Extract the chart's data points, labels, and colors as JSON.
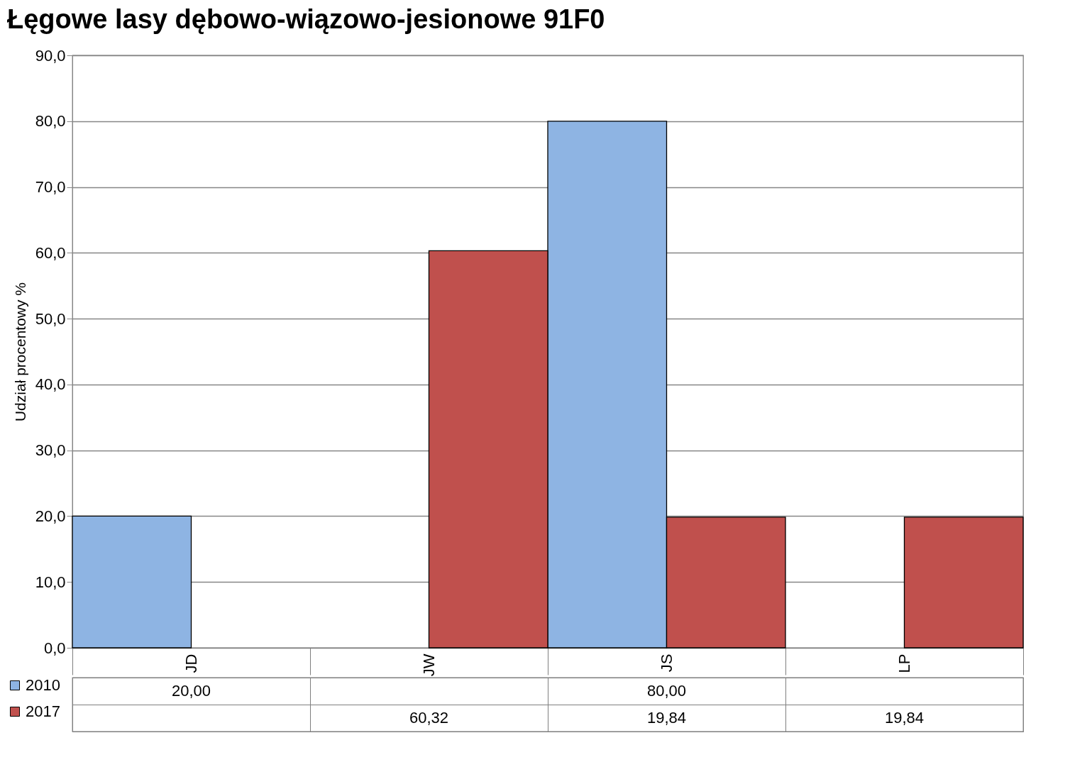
{
  "chart_data": {
    "type": "bar",
    "title": "Łęgowe lasy dębowo-wiązowo-jesionowe 91F0",
    "ylabel": "Udział procentowy %",
    "categories": [
      "JD",
      "JW",
      "JS",
      "LP"
    ],
    "series": [
      {
        "name": "2010",
        "color": "#8eb4e3",
        "values": [
          20.0,
          null,
          80.0,
          null
        ],
        "value_labels": [
          "20,00",
          null,
          "80,00",
          null
        ]
      },
      {
        "name": "2017",
        "color": "#c0504d",
        "values": [
          null,
          60.32,
          19.84,
          19.84
        ],
        "value_labels": [
          null,
          "60,32",
          "19,84",
          "19,84"
        ]
      }
    ],
    "ylim": [
      0,
      90
    ],
    "yticks": [
      {
        "value": 0,
        "label": "0,0"
      },
      {
        "value": 10,
        "label": "10,0"
      },
      {
        "value": 20,
        "label": "20,0"
      },
      {
        "value": 30,
        "label": "30,0"
      },
      {
        "value": 40,
        "label": "40,0"
      },
      {
        "value": 50,
        "label": "50,0"
      },
      {
        "value": 60,
        "label": "60,0"
      },
      {
        "value": 70,
        "label": "70,0"
      },
      {
        "value": 80,
        "label": "80,0"
      },
      {
        "value": 90,
        "label": "90,0"
      }
    ],
    "grid": "y",
    "legend": "bottom"
  }
}
